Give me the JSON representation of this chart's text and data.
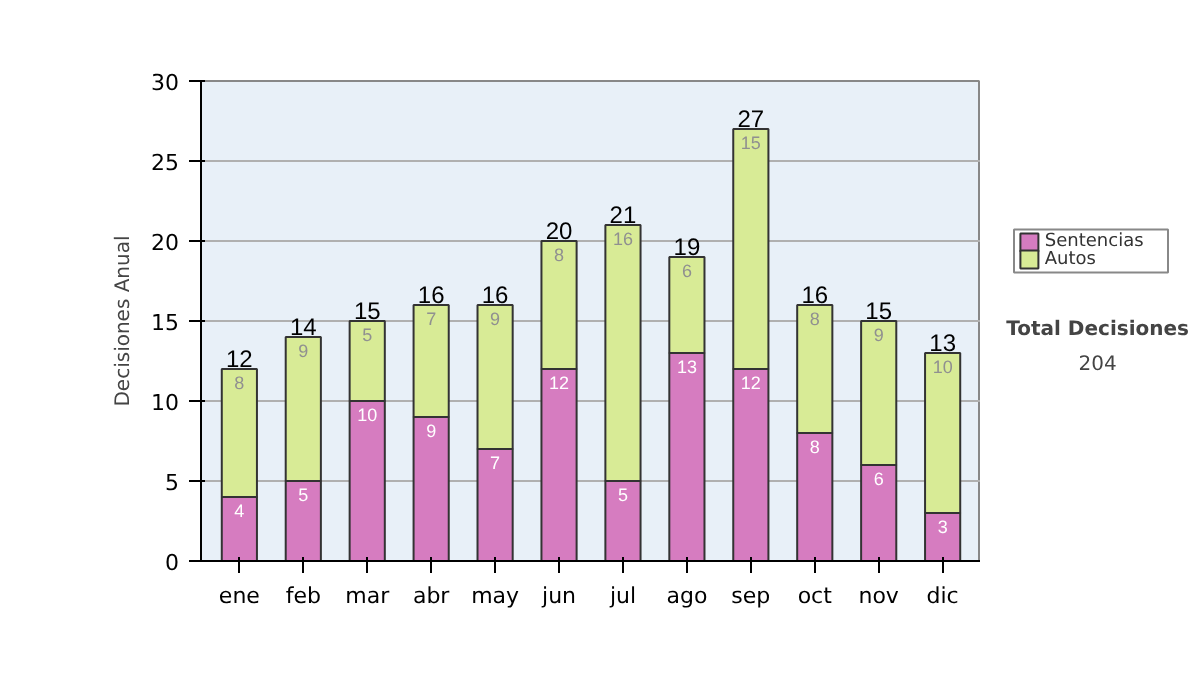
{
  "chart_data": {
    "type": "bar",
    "stacked": true,
    "ylabel": "Decisiones Anual",
    "categories": [
      "ene",
      "feb",
      "mar",
      "abr",
      "may",
      "jun",
      "jul",
      "ago",
      "sep",
      "oct",
      "nov",
      "dic"
    ],
    "series": [
      {
        "name": "Sentencias",
        "color": "#d67cc0",
        "values": [
          4,
          5,
          10,
          9,
          7,
          12,
          5,
          13,
          12,
          8,
          6,
          3
        ]
      },
      {
        "name": "Autos",
        "color": "#d8eb96",
        "values": [
          8,
          9,
          5,
          7,
          9,
          8,
          16,
          6,
          15,
          8,
          9,
          10
        ]
      }
    ],
    "data_labels": true,
    "totals": [
      "12",
      "14",
      "15",
      "16",
      "16",
      "20",
      "21",
      "19",
      "27",
      "16",
      "15",
      "13"
    ],
    "ylim": [
      0,
      30
    ],
    "yticks": [
      0,
      5,
      10,
      15,
      20,
      25,
      30
    ],
    "grid": "y",
    "legend": "right",
    "annotations": [
      "Total Decisiones",
      "204"
    ]
  }
}
